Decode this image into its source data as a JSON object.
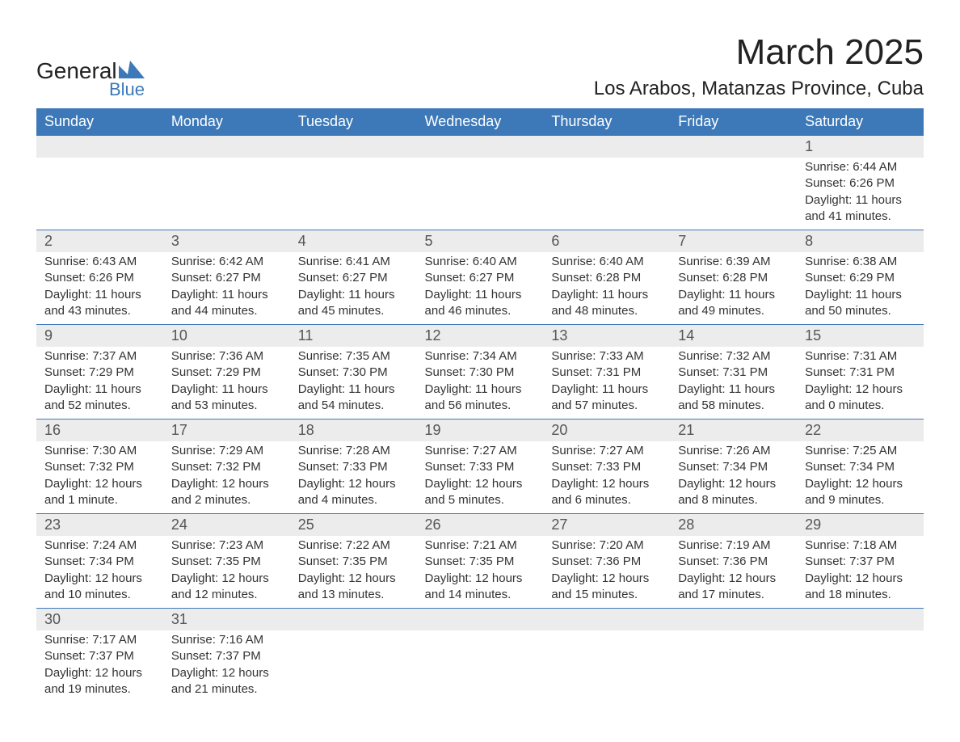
{
  "logo": {
    "top": "General",
    "bottom": "Blue",
    "shape_color": "#3d79b8"
  },
  "title": "March 2025",
  "location": "Los Arabos, Matanzas Province, Cuba",
  "header_bg": "#3d79b8",
  "header_text_color": "#ffffff",
  "daynum_bg": "#ececec",
  "row_border_color": "#3d79b8",
  "text_color": "#333333",
  "background_color": "#ffffff",
  "day_headers": [
    "Sunday",
    "Monday",
    "Tuesday",
    "Wednesday",
    "Thursday",
    "Friday",
    "Saturday"
  ],
  "weeks": [
    [
      null,
      null,
      null,
      null,
      null,
      null,
      {
        "n": "1",
        "sunrise": "6:44 AM",
        "sunset": "6:26 PM",
        "daylight": "11 hours and 41 minutes."
      }
    ],
    [
      {
        "n": "2",
        "sunrise": "6:43 AM",
        "sunset": "6:26 PM",
        "daylight": "11 hours and 43 minutes."
      },
      {
        "n": "3",
        "sunrise": "6:42 AM",
        "sunset": "6:27 PM",
        "daylight": "11 hours and 44 minutes."
      },
      {
        "n": "4",
        "sunrise": "6:41 AM",
        "sunset": "6:27 PM",
        "daylight": "11 hours and 45 minutes."
      },
      {
        "n": "5",
        "sunrise": "6:40 AM",
        "sunset": "6:27 PM",
        "daylight": "11 hours and 46 minutes."
      },
      {
        "n": "6",
        "sunrise": "6:40 AM",
        "sunset": "6:28 PM",
        "daylight": "11 hours and 48 minutes."
      },
      {
        "n": "7",
        "sunrise": "6:39 AM",
        "sunset": "6:28 PM",
        "daylight": "11 hours and 49 minutes."
      },
      {
        "n": "8",
        "sunrise": "6:38 AM",
        "sunset": "6:29 PM",
        "daylight": "11 hours and 50 minutes."
      }
    ],
    [
      {
        "n": "9",
        "sunrise": "7:37 AM",
        "sunset": "7:29 PM",
        "daylight": "11 hours and 52 minutes."
      },
      {
        "n": "10",
        "sunrise": "7:36 AM",
        "sunset": "7:29 PM",
        "daylight": "11 hours and 53 minutes."
      },
      {
        "n": "11",
        "sunrise": "7:35 AM",
        "sunset": "7:30 PM",
        "daylight": "11 hours and 54 minutes."
      },
      {
        "n": "12",
        "sunrise": "7:34 AM",
        "sunset": "7:30 PM",
        "daylight": "11 hours and 56 minutes."
      },
      {
        "n": "13",
        "sunrise": "7:33 AM",
        "sunset": "7:31 PM",
        "daylight": "11 hours and 57 minutes."
      },
      {
        "n": "14",
        "sunrise": "7:32 AM",
        "sunset": "7:31 PM",
        "daylight": "11 hours and 58 minutes."
      },
      {
        "n": "15",
        "sunrise": "7:31 AM",
        "sunset": "7:31 PM",
        "daylight": "12 hours and 0 minutes."
      }
    ],
    [
      {
        "n": "16",
        "sunrise": "7:30 AM",
        "sunset": "7:32 PM",
        "daylight": "12 hours and 1 minute."
      },
      {
        "n": "17",
        "sunrise": "7:29 AM",
        "sunset": "7:32 PM",
        "daylight": "12 hours and 2 minutes."
      },
      {
        "n": "18",
        "sunrise": "7:28 AM",
        "sunset": "7:33 PM",
        "daylight": "12 hours and 4 minutes."
      },
      {
        "n": "19",
        "sunrise": "7:27 AM",
        "sunset": "7:33 PM",
        "daylight": "12 hours and 5 minutes."
      },
      {
        "n": "20",
        "sunrise": "7:27 AM",
        "sunset": "7:33 PM",
        "daylight": "12 hours and 6 minutes."
      },
      {
        "n": "21",
        "sunrise": "7:26 AM",
        "sunset": "7:34 PM",
        "daylight": "12 hours and 8 minutes."
      },
      {
        "n": "22",
        "sunrise": "7:25 AM",
        "sunset": "7:34 PM",
        "daylight": "12 hours and 9 minutes."
      }
    ],
    [
      {
        "n": "23",
        "sunrise": "7:24 AM",
        "sunset": "7:34 PM",
        "daylight": "12 hours and 10 minutes."
      },
      {
        "n": "24",
        "sunrise": "7:23 AM",
        "sunset": "7:35 PM",
        "daylight": "12 hours and 12 minutes."
      },
      {
        "n": "25",
        "sunrise": "7:22 AM",
        "sunset": "7:35 PM",
        "daylight": "12 hours and 13 minutes."
      },
      {
        "n": "26",
        "sunrise": "7:21 AM",
        "sunset": "7:35 PM",
        "daylight": "12 hours and 14 minutes."
      },
      {
        "n": "27",
        "sunrise": "7:20 AM",
        "sunset": "7:36 PM",
        "daylight": "12 hours and 15 minutes."
      },
      {
        "n": "28",
        "sunrise": "7:19 AM",
        "sunset": "7:36 PM",
        "daylight": "12 hours and 17 minutes."
      },
      {
        "n": "29",
        "sunrise": "7:18 AM",
        "sunset": "7:37 PM",
        "daylight": "12 hours and 18 minutes."
      }
    ],
    [
      {
        "n": "30",
        "sunrise": "7:17 AM",
        "sunset": "7:37 PM",
        "daylight": "12 hours and 19 minutes."
      },
      {
        "n": "31",
        "sunrise": "7:16 AM",
        "sunset": "7:37 PM",
        "daylight": "12 hours and 21 minutes."
      },
      null,
      null,
      null,
      null,
      null
    ]
  ],
  "labels": {
    "sunrise": "Sunrise: ",
    "sunset": "Sunset: ",
    "daylight": "Daylight: "
  }
}
